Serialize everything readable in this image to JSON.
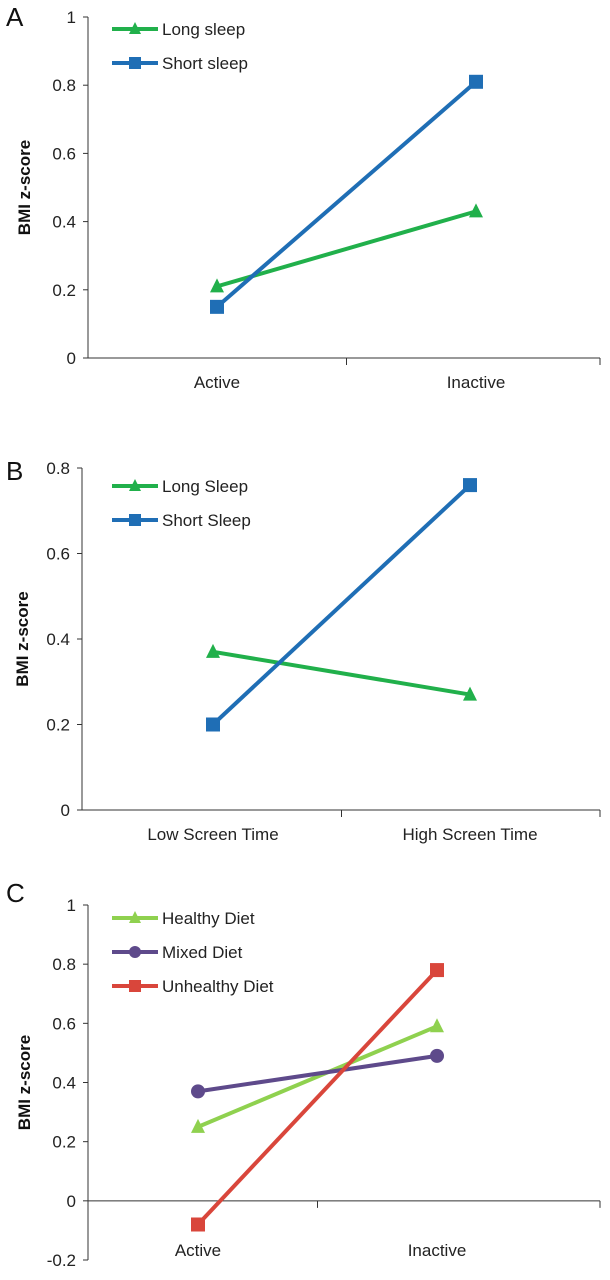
{
  "chart_data": [
    {
      "type": "line",
      "panel_label": "A",
      "ylabel": "BMI z-score",
      "ylim": [
        0,
        1
      ],
      "yticks": [
        "0",
        "0.2",
        "0.4",
        "0.6",
        "0.8",
        "1"
      ],
      "categories": [
        "Active",
        "Inactive"
      ],
      "legend_position": "top-left",
      "series": [
        {
          "name": "Long sleep",
          "values": [
            0.21,
            0.43
          ],
          "color": "#21b04b",
          "marker": "triangle"
        },
        {
          "name": "Short sleep",
          "values": [
            0.15,
            0.81
          ],
          "color": "#1f6eb5",
          "marker": "square"
        }
      ]
    },
    {
      "type": "line",
      "panel_label": "B",
      "ylabel": "BMI z-score",
      "ylim": [
        0,
        0.8
      ],
      "yticks": [
        "0",
        "0.2",
        "0.4",
        "0.6",
        "0.8"
      ],
      "categories": [
        "Low Screen Time",
        "High Screen Time"
      ],
      "legend_position": "top-left",
      "series": [
        {
          "name": "Long Sleep",
          "values": [
            0.37,
            0.27
          ],
          "color": "#21b04b",
          "marker": "triangle"
        },
        {
          "name": "Short Sleep",
          "values": [
            0.2,
            0.76
          ],
          "color": "#1f6eb5",
          "marker": "square"
        }
      ]
    },
    {
      "type": "line",
      "panel_label": "C",
      "ylabel": "BMI z-score",
      "ylim": [
        -0.2,
        1
      ],
      "yticks": [
        "-0.2",
        "0",
        "0.2",
        "0.4",
        "0.6",
        "0.8",
        "1"
      ],
      "categories": [
        "Active",
        "Inactive"
      ],
      "legend_position": "top-left",
      "series": [
        {
          "name": "Healthy Diet",
          "values": [
            0.25,
            0.59
          ],
          "color": "#8fd14f",
          "marker": "triangle"
        },
        {
          "name": "Mixed Diet",
          "values": [
            0.37,
            0.49
          ],
          "color": "#5e4a8b",
          "marker": "circle"
        },
        {
          "name": "Unhealthy Diet",
          "values": [
            -0.08,
            0.78
          ],
          "color": "#d9463b",
          "marker": "square"
        }
      ]
    }
  ]
}
